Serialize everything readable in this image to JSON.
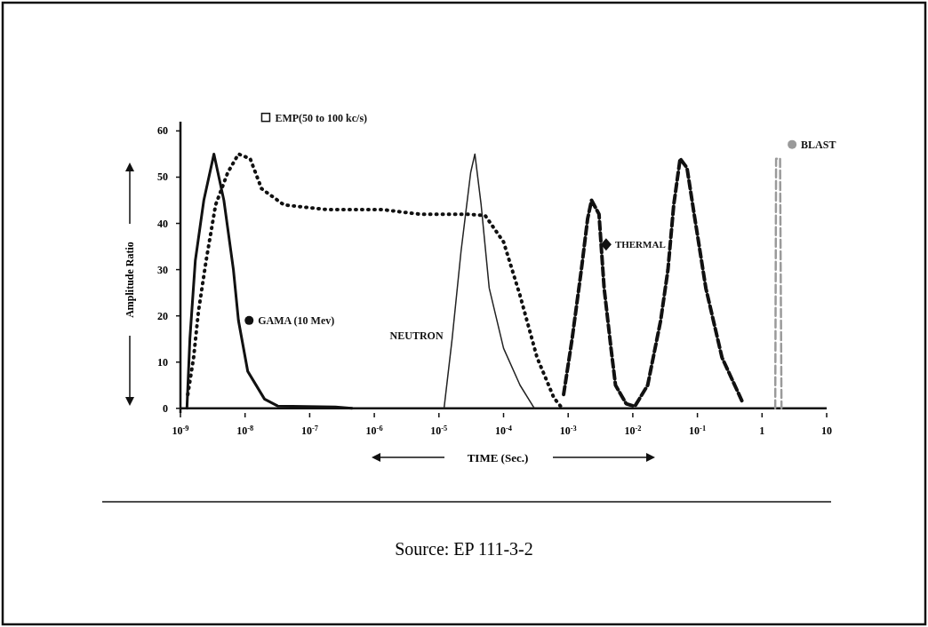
{
  "chart_data": {
    "type": "line",
    "xlabel": "TIME (Sec.)",
    "ylabel": "Amplitude Ratio",
    "log": "x",
    "xlim": [
      1e-09,
      10
    ],
    "ylim": [
      -1,
      62
    ],
    "xticks": [
      {
        "value": 1e-09,
        "label": "10$^{-9}$"
      },
      {
        "value": 1e-08,
        "label": "10$^{-8}$"
      },
      {
        "value": 1e-07,
        "label": "10$^{-7}$"
      },
      {
        "value": 1e-06,
        "label": "10$^{-6}$"
      },
      {
        "value": 1e-05,
        "label": "10$^{-5}$"
      },
      {
        "value": 0.0001,
        "label": "10$^{-4}$"
      },
      {
        "value": 0.001,
        "label": "10$^{-3}$"
      },
      {
        "value": 0.01,
        "label": "10$^{-2}$"
      },
      {
        "value": 0.1,
        "label": "10$^{-1}$"
      },
      1,
      10
    ],
    "yticks": [
      0,
      10,
      20,
      30,
      40,
      50,
      60
    ],
    "grid": false,
    "legend": "top",
    "marker": "none",
    "series": [
      {
        "name": "GAMA (10 Mev)",
        "color": "#111111",
        "line_style": "solid",
        "x": [
          1.26e-09,
          1.4e-09,
          1.7e-09,
          2.3e-09,
          3.3e-09,
          4.7e-09,
          6.6e-09,
          7.9e-09,
          1.1e-08,
          2e-08,
          3.2e-08,
          2.5e-07,
          4.5e-07
        ],
        "values": [
          0,
          15,
          32,
          45,
          55,
          45,
          30,
          19,
          8,
          2,
          0.5,
          0.3,
          0
        ]
      },
      {
        "name": "EMP(50 to 100 kc/s)",
        "color": "#111111",
        "line_style": "dotted",
        "x": [
          1.3e-09,
          1.6e-09,
          1.9e-09,
          2.5e-09,
          3.5e-09,
          5.4e-09,
          7.9e-09,
          1.2e-08,
          1.8e-08,
          4e-08,
          1.8e-07,
          1.3e-06,
          5e-06,
          2.7e-05,
          5.2e-05,
          0.0001,
          0.00018,
          0.00033,
          0.0006,
          0.00081
        ],
        "values": [
          3,
          11,
          21,
          32,
          44,
          51,
          55,
          54,
          47.5,
          44,
          43,
          43,
          42,
          42,
          41.7,
          36,
          24.4,
          11,
          2.3,
          0
        ]
      },
      {
        "name": "NEUTRON",
        "color": "#222222",
        "line_style": "solid",
        "x": [
          1.2e-05,
          1.6e-05,
          2.2e-05,
          3.1e-05,
          3.6e-05,
          4.5e-05,
          6e-05,
          0.0001,
          0.00018,
          0.0003
        ],
        "values": [
          0,
          15,
          34,
          51,
          55,
          44,
          26,
          13,
          5,
          0
        ]
      },
      {
        "name": "THERMAL",
        "color": "#111111",
        "line_style": "dashed",
        "x": [
          0.00085,
          0.00115,
          0.0016,
          0.002,
          0.0023,
          0.003,
          0.0036,
          0.0046,
          0.0054,
          0.0079,
          0.0107,
          0.017,
          0.027,
          0.035,
          0.043,
          0.054,
          0.069,
          0.089,
          0.135,
          0.24,
          0.5
        ],
        "values": [
          3,
          15,
          30,
          41,
          45,
          42,
          26,
          13,
          5,
          1,
          0.4,
          5,
          19,
          30,
          44,
          54,
          52,
          42,
          26,
          11,
          1.3
        ]
      },
      {
        "name": "BLAST",
        "color": "#9a9a9a",
        "line_style": "dashed",
        "x": [
          1.6,
          1.65,
          1.9,
          2.0
        ],
        "values": [
          0,
          54,
          54,
          0
        ]
      }
    ],
    "annotations": [
      "Source: EP 111-3-2"
    ]
  }
}
